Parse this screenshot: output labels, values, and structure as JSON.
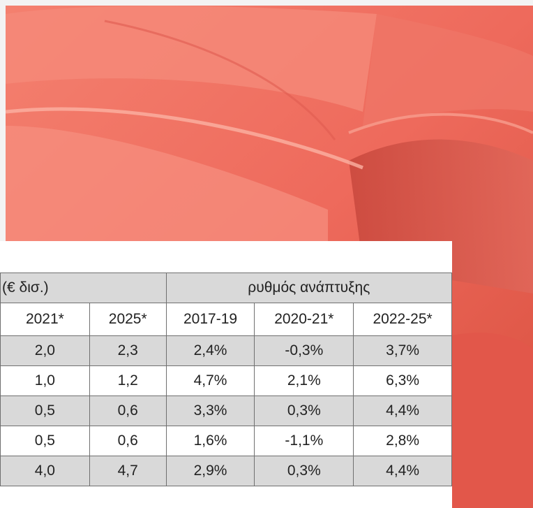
{
  "table": {
    "group_headers": [
      "(€ δισ.)",
      "ρυθμός ανάπτυξης"
    ],
    "columns": [
      "2021*",
      "2025*",
      "2017-19",
      "2020-21*",
      "2022-25*"
    ],
    "rows": [
      [
        "2,0",
        "2,3",
        "2,4%",
        "-0,3%",
        "3,7%"
      ],
      [
        "1,0",
        "1,2",
        "4,7%",
        "2,1%",
        "6,3%"
      ],
      [
        "0,5",
        "0,6",
        "3,3%",
        "0,3%",
        "4,4%"
      ],
      [
        "0,5",
        "0,6",
        "1,6%",
        "-1,1%",
        "2,8%"
      ],
      [
        "4,0",
        "4,7",
        "2,9%",
        "0,3%",
        "4,4%"
      ]
    ]
  }
}
